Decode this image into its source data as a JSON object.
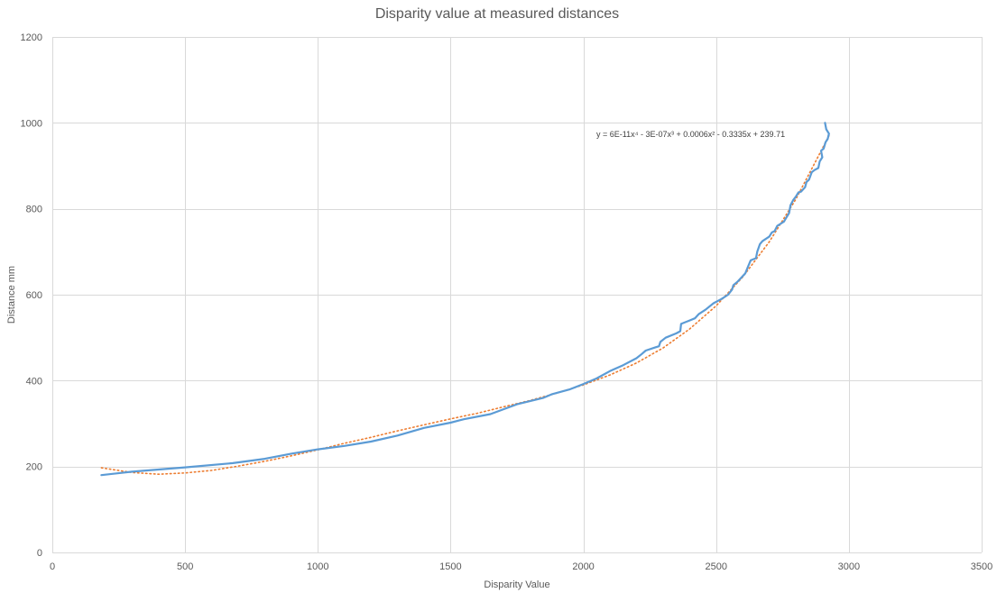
{
  "chart_data": {
    "type": "scatter",
    "title": "Disparity value at measured distances",
    "xlabel": "Disparity Value",
    "ylabel": "Distance mm",
    "xlim": [
      0,
      3500
    ],
    "ylim": [
      0,
      1200
    ],
    "x_ticks": [
      0,
      500,
      1000,
      1500,
      2000,
      2500,
      3000,
      3500
    ],
    "y_ticks": [
      0,
      200,
      400,
      600,
      800,
      1000,
      1200
    ],
    "grid": true,
    "legend": "none",
    "series": [
      {
        "style": "line",
        "color": "#5b9bd5",
        "points": [
          [
            185,
            180
          ],
          [
            300,
            188
          ],
          [
            500,
            198
          ],
          [
            680,
            208
          ],
          [
            800,
            218
          ],
          [
            900,
            230
          ],
          [
            1000,
            240
          ],
          [
            1100,
            248
          ],
          [
            1200,
            258
          ],
          [
            1300,
            272
          ],
          [
            1400,
            290
          ],
          [
            1500,
            302
          ],
          [
            1550,
            310
          ],
          [
            1650,
            322
          ],
          [
            1750,
            345
          ],
          [
            1850,
            360
          ],
          [
            1880,
            368
          ],
          [
            1950,
            380
          ],
          [
            2000,
            392
          ],
          [
            2050,
            405
          ],
          [
            2100,
            422
          ],
          [
            2150,
            436
          ],
          [
            2200,
            452
          ],
          [
            2220,
            462
          ],
          [
            2235,
            470
          ],
          [
            2270,
            477
          ],
          [
            2285,
            480
          ],
          [
            2290,
            490
          ],
          [
            2310,
            500
          ],
          [
            2350,
            510
          ],
          [
            2365,
            515
          ],
          [
            2368,
            532
          ],
          [
            2400,
            540
          ],
          [
            2420,
            545
          ],
          [
            2435,
            555
          ],
          [
            2460,
            565
          ],
          [
            2490,
            580
          ],
          [
            2520,
            590
          ],
          [
            2545,
            600
          ],
          [
            2560,
            612
          ],
          [
            2565,
            622
          ],
          [
            2580,
            630
          ],
          [
            2610,
            650
          ],
          [
            2620,
            665
          ],
          [
            2630,
            680
          ],
          [
            2650,
            685
          ],
          [
            2655,
            700
          ],
          [
            2665,
            718
          ],
          [
            2675,
            725
          ],
          [
            2700,
            735
          ],
          [
            2710,
            745
          ],
          [
            2720,
            748
          ],
          [
            2730,
            760
          ],
          [
            2755,
            770
          ],
          [
            2765,
            780
          ],
          [
            2775,
            790
          ],
          [
            2780,
            808
          ],
          [
            2790,
            820
          ],
          [
            2800,
            828
          ],
          [
            2810,
            838
          ],
          [
            2820,
            840
          ],
          [
            2835,
            850
          ],
          [
            2840,
            862
          ],
          [
            2850,
            868
          ],
          [
            2860,
            885
          ],
          [
            2870,
            890
          ],
          [
            2885,
            895
          ],
          [
            2890,
            910
          ],
          [
            2900,
            920
          ],
          [
            2895,
            935
          ],
          [
            2905,
            940
          ],
          [
            2912,
            955
          ],
          [
            2920,
            962
          ],
          [
            2925,
            975
          ],
          [
            2915,
            985
          ],
          [
            2910,
            1000
          ]
        ]
      },
      {
        "style": "dotted",
        "color": "#ed7d31",
        "trendline": "polynomial",
        "equation": "y = 6E-11x⁴ - 3E-07x³ + 0.0006x² - 0.3335x + 239.71",
        "points": [
          [
            185,
            197
          ],
          [
            300,
            186
          ],
          [
            400,
            182
          ],
          [
            500,
            185
          ],
          [
            600,
            191
          ],
          [
            700,
            201
          ],
          [
            800,
            212
          ],
          [
            900,
            225
          ],
          [
            1000,
            239
          ],
          [
            1100,
            254
          ],
          [
            1200,
            268
          ],
          [
            1300,
            283
          ],
          [
            1400,
            297
          ],
          [
            1500,
            311
          ],
          [
            1600,
            324
          ],
          [
            1700,
            339
          ],
          [
            1800,
            354
          ],
          [
            1900,
            371
          ],
          [
            2000,
            390
          ],
          [
            2100,
            413
          ],
          [
            2200,
            441
          ],
          [
            2300,
            476
          ],
          [
            2400,
            520
          ],
          [
            2500,
            574
          ],
          [
            2600,
            641
          ],
          [
            2700,
            723
          ],
          [
            2800,
            822
          ],
          [
            2900,
            940
          ],
          [
            2925,
            970
          ]
        ]
      }
    ]
  }
}
